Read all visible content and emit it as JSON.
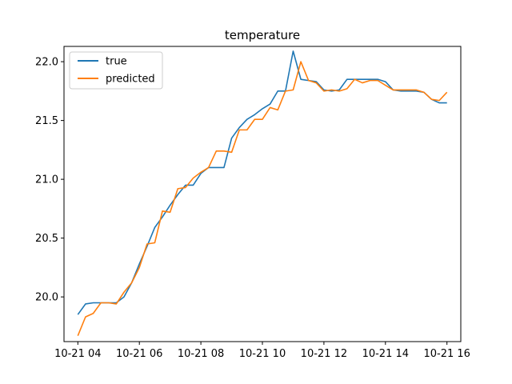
{
  "chart_data": {
    "type": "line",
    "title": "temperature",
    "xlabel": "",
    "ylabel": "",
    "x": [
      "04:00",
      "04:15",
      "04:30",
      "04:45",
      "05:00",
      "05:15",
      "05:30",
      "05:45",
      "06:00",
      "06:15",
      "06:30",
      "06:45",
      "07:00",
      "07:15",
      "07:30",
      "07:45",
      "08:00",
      "08:15",
      "08:30",
      "08:45",
      "09:00",
      "09:15",
      "09:30",
      "09:45",
      "10:00",
      "10:15",
      "10:30",
      "10:45",
      "11:00",
      "11:15",
      "11:30",
      "11:45",
      "12:00",
      "12:15",
      "12:30",
      "12:45",
      "13:00",
      "13:15",
      "13:30",
      "13:45",
      "14:00",
      "14:15",
      "14:30",
      "14:45",
      "15:00",
      "15:15",
      "15:30",
      "15:45",
      "16:00"
    ],
    "x_tick_labels": [
      "10-21 04",
      "10-21 06",
      "10-21 08",
      "10-21 10",
      "10-21 12",
      "10-21 14",
      "10-21 16"
    ],
    "x_tick_values": [
      "04:00",
      "06:00",
      "08:00",
      "10:00",
      "12:00",
      "14:00",
      "16:00"
    ],
    "xlim": [
      "03:33",
      "16:27"
    ],
    "y_ticks": [
      "20.0",
      "20.5",
      "21.0",
      "21.5",
      "22.0"
    ],
    "ylim": [
      19.62,
      22.13
    ],
    "series": [
      {
        "name": "true",
        "color": "#1f77b4",
        "values": [
          19.85,
          19.94,
          19.95,
          19.95,
          19.95,
          19.95,
          20.0,
          20.12,
          20.28,
          20.43,
          20.59,
          20.68,
          20.78,
          20.87,
          20.95,
          20.95,
          21.05,
          21.1,
          21.1,
          21.1,
          21.35,
          21.44,
          21.51,
          21.55,
          21.6,
          21.64,
          21.75,
          21.75,
          22.09,
          21.85,
          21.84,
          21.83,
          21.76,
          21.75,
          21.76,
          21.85,
          21.85,
          21.85,
          21.85,
          21.85,
          21.83,
          21.76,
          21.75,
          21.75,
          21.75,
          21.74,
          21.68,
          21.65,
          21.65
        ]
      },
      {
        "name": "predicted",
        "color": "#ff7f0e",
        "values": [
          19.67,
          19.83,
          19.86,
          19.95,
          19.95,
          19.94,
          20.04,
          20.12,
          20.25,
          20.45,
          20.46,
          20.73,
          20.72,
          20.92,
          20.93,
          21.01,
          21.06,
          21.1,
          21.24,
          21.24,
          21.23,
          21.42,
          21.42,
          21.51,
          21.51,
          21.61,
          21.59,
          21.75,
          21.76,
          22.0,
          21.84,
          21.82,
          21.75,
          21.76,
          21.75,
          21.77,
          21.85,
          21.82,
          21.84,
          21.84,
          21.8,
          21.76,
          21.76,
          21.76,
          21.76,
          21.74,
          21.68,
          21.67,
          21.74
        ]
      }
    ],
    "grid": false,
    "legend_position": "top-left"
  }
}
